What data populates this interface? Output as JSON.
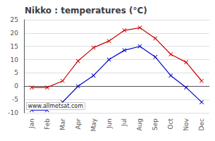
{
  "chart_data": {
    "type": "line",
    "title": "Nikko : temperatures (°C)",
    "categories": [
      "Jan",
      "Feb",
      "Mar",
      "Apr",
      "May",
      "Jun",
      "Jul",
      "Aug",
      "Sep",
      "Oct",
      "Nov",
      "Dec"
    ],
    "series": [
      {
        "color": "#cc0000",
        "marker": "x",
        "values": [
          -0.5,
          -0.5,
          2.0,
          9.5,
          14.5,
          17.0,
          21.0,
          22.0,
          18.0,
          12.0,
          9.0,
          2.0
        ]
      },
      {
        "color": "#0000cc",
        "marker": "x",
        "values": [
          -9.0,
          -9.0,
          -6.0,
          0.0,
          4.0,
          10.0,
          13.5,
          15.0,
          11.0,
          4.0,
          -0.5,
          -6.0
        ]
      }
    ],
    "ylim": [
      -10,
      25
    ],
    "yticks": [
      -10,
      -5,
      0,
      5,
      10,
      15,
      20,
      25
    ],
    "grid": true,
    "annotations": [
      "www.allmetsat.com"
    ]
  }
}
